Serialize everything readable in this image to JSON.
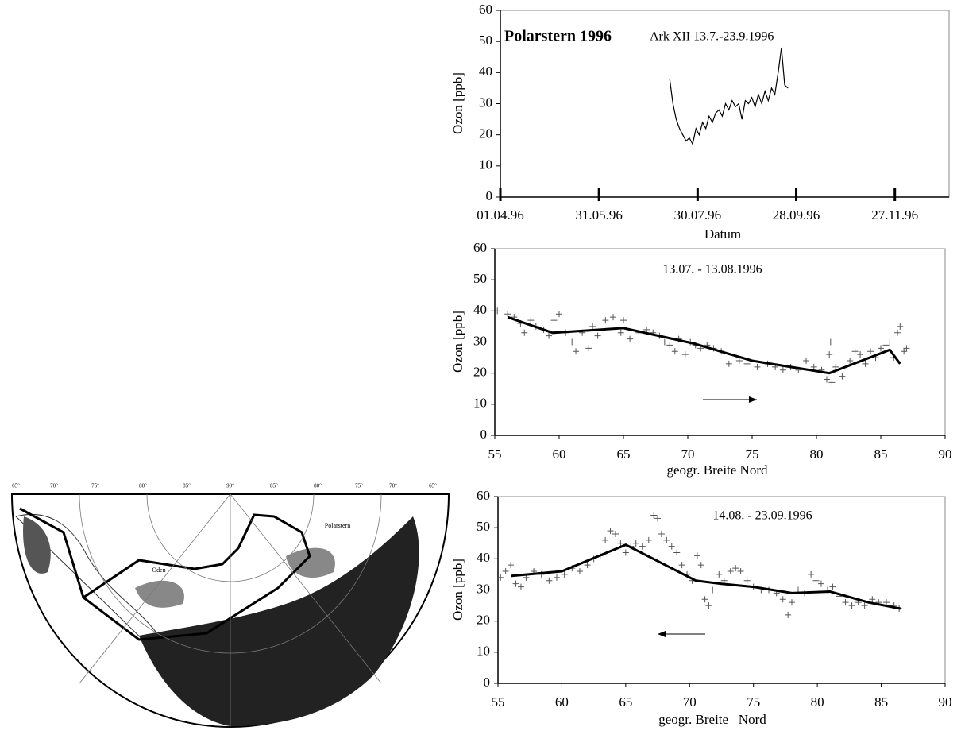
{
  "chart_data": [
    {
      "type": "line",
      "title": "Polarstern 1996",
      "subtitle": "Ark XII 13.7.-23.9.1996",
      "y_label": "Ozon [ppb]",
      "x_label": "Datum",
      "color": "#000000",
      "xlim": [
        "01.04.96",
        "30.12.96"
      ],
      "xticks": [
        "01.04.96",
        "31.05.96",
        "30.07.96",
        "28.09.96",
        "27.11.96"
      ],
      "ylim": [
        0,
        60
      ],
      "yticks": [
        0,
        10,
        20,
        30,
        40,
        50,
        60
      ],
      "x": [
        "13.07.96",
        "15.07.96",
        "17.07.96",
        "19.07.96",
        "21.07.96",
        "23.07.96",
        "25.07.96",
        "27.07.96",
        "29.07.96",
        "31.07.96",
        "02.08.96",
        "04.08.96",
        "06.08.96",
        "08.08.96",
        "10.08.96",
        "12.08.96",
        "14.08.96",
        "16.08.96",
        "18.08.96",
        "20.08.96",
        "22.08.96",
        "24.08.96",
        "26.08.96",
        "28.08.96",
        "30.08.96",
        "01.09.96",
        "03.09.96",
        "05.09.96",
        "07.09.96",
        "09.09.96",
        "11.09.96",
        "13.09.96",
        "15.09.96",
        "17.09.96",
        "19.09.96",
        "21.09.96",
        "23.09.96"
      ],
      "values": [
        38,
        30,
        25,
        22,
        20,
        18,
        19,
        17,
        22,
        20,
        24,
        22,
        26,
        24,
        27,
        28,
        26,
        30,
        28,
        31,
        29,
        30,
        25,
        31,
        30,
        32,
        29,
        33,
        30,
        34,
        31,
        35,
        33,
        40,
        48,
        36,
        35
      ]
    },
    {
      "type": "scatter",
      "title": "13.07. - 13.08.1996",
      "y_label": "Ozon [ppb]",
      "x_label": "geogr. Breite Nord",
      "color": "#000000",
      "point_color": "#555555",
      "xlim": [
        55,
        90
      ],
      "xticks": [
        55,
        60,
        65,
        70,
        75,
        80,
        85,
        90
      ],
      "ylim": [
        0,
        60
      ],
      "yticks": [
        0,
        10,
        20,
        30,
        40,
        50,
        60
      ],
      "points": {
        "x": [
          55.2,
          56,
          56.5,
          57,
          57.3,
          57.8,
          58.2,
          58.8,
          59.2,
          59.6,
          60,
          60.5,
          61,
          61.3,
          61.8,
          62.3,
          62.6,
          63,
          63.6,
          64.2,
          64.8,
          65,
          65.5,
          66.2,
          66.8,
          67.3,
          67.8,
          68.2,
          68.6,
          69,
          69.3,
          69.8,
          70.2,
          70.6,
          71,
          71.5,
          72,
          72.6,
          73.2,
          74,
          74.6,
          75.4,
          76.2,
          76.8,
          77.4,
          78,
          78.6,
          79.2,
          79.8,
          80.4,
          80.8,
          81,
          81.1,
          81.2,
          81.5,
          82,
          82.6,
          83,
          83.4,
          83.8,
          84.2,
          84.6,
          85,
          85.4,
          85.7,
          86,
          86.3,
          86.5,
          86.8,
          87
        ],
        "values": [
          40,
          39,
          38,
          36,
          33,
          37,
          35,
          34,
          32,
          37,
          39,
          33,
          30,
          27,
          33,
          28,
          35,
          32,
          37,
          38,
          33,
          37,
          31,
          33,
          34,
          33,
          32,
          30,
          29,
          27,
          31,
          26,
          30,
          29,
          28,
          29,
          28,
          27,
          23,
          24,
          23,
          22,
          23,
          22,
          21,
          22,
          21,
          24,
          22,
          21,
          18,
          26,
          30,
          17,
          22,
          19,
          24,
          27,
          26,
          23,
          27,
          25,
          28,
          29,
          30,
          25,
          33,
          35,
          27,
          28
        ]
      },
      "line": {
        "x": [
          56,
          59.5,
          65,
          70.5,
          75,
          81,
          85.7,
          86.5
        ],
        "values": [
          38,
          33,
          34.5,
          29.5,
          24,
          20,
          27.5,
          23
        ]
      }
    },
    {
      "type": "scatter",
      "title": "14.08. - 23.09.1996",
      "y_label": "Ozon [ppb]",
      "x_label": "geogr. Breite   Nord",
      "color": "#000000",
      "point_color": "#555555",
      "xlim": [
        55,
        90
      ],
      "xticks": [
        55,
        60,
        65,
        70,
        75,
        80,
        85,
        90
      ],
      "ylim": [
        0,
        60
      ],
      "yticks": [
        0,
        10,
        20,
        30,
        40,
        50,
        60
      ],
      "points": {
        "x": [
          55.2,
          55.6,
          56,
          56.4,
          56.8,
          57.2,
          57.8,
          58.4,
          59,
          59.6,
          60.2,
          60.8,
          61.4,
          62,
          62.5,
          63,
          63.4,
          63.8,
          64.2,
          64.6,
          65,
          65.4,
          65.8,
          66.3,
          66.8,
          67.2,
          67.5,
          67.8,
          68.2,
          68.6,
          69,
          69.4,
          69.8,
          70.2,
          70.6,
          70.9,
          71.2,
          71.5,
          71.8,
          72.3,
          72.7,
          73.2,
          73.6,
          74,
          74.5,
          75,
          75.6,
          76.2,
          76.8,
          77.3,
          77.7,
          78,
          78.5,
          79,
          79.5,
          79.9,
          80.3,
          80.8,
          81.2,
          81.7,
          82.2,
          82.7,
          83.2,
          83.7,
          84.3,
          84.8,
          85.4,
          86,
          86.4
        ],
        "values": [
          34,
          36,
          38,
          32,
          31,
          34,
          36,
          35,
          33,
          34,
          35,
          37,
          36,
          38,
          40,
          41,
          46,
          49,
          48,
          45,
          42,
          44,
          45,
          44,
          46,
          54,
          53,
          48,
          46,
          44,
          42,
          38,
          35,
          33,
          41,
          38,
          27,
          25,
          30,
          35,
          33,
          36,
          37,
          36,
          33,
          31,
          30,
          30,
          29,
          27,
          22,
          26,
          30,
          29,
          35,
          33,
          32,
          30,
          31,
          28,
          26,
          25,
          26,
          25,
          27,
          26,
          26,
          25,
          24
        ]
      },
      "line": {
        "x": [
          56,
          60,
          65,
          70.5,
          72.5,
          75,
          78,
          81,
          84,
          86.5
        ],
        "values": [
          34.5,
          36,
          44.5,
          33,
          32,
          31,
          29,
          29.5,
          26,
          24
        ]
      }
    }
  ],
  "map": {
    "labels": [
      "65°",
      "70°",
      "75°",
      "80°",
      "85°",
      "90°",
      "85°",
      "80°",
      "75°",
      "70°",
      "65°",
      "Polarstern",
      "Oden"
    ]
  }
}
